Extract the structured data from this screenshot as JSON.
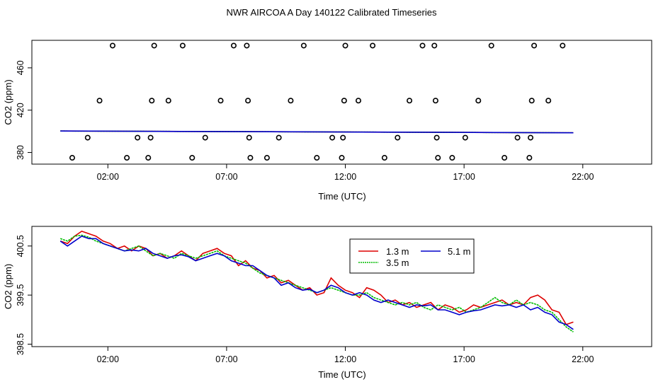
{
  "title": "NWR AIRCOA A  Day 140122  Calibrated Timeseries",
  "chart_data": [
    {
      "type": "scatter",
      "xlabel": "Time (UTC)",
      "ylabel": "CO2 (ppm)",
      "xlim": [
        -1.2,
        24.9
      ],
      "ylim": [
        369,
        486
      ],
      "x_ticks": [
        2,
        7,
        12,
        17,
        22
      ],
      "x_tick_labels": [
        "02:00",
        "07:00",
        "12:00",
        "17:00",
        "22:00"
      ],
      "y_ticks": [
        380,
        420,
        460
      ],
      "y_tick_labels": [
        "380",
        "420",
        "460"
      ],
      "grid": false,
      "series": [
        {
          "marker": "open-circle",
          "color": "#000000",
          "points": [
            [
              0.5,
              375
            ],
            [
              1.15,
              394
            ],
            [
              1.65,
              429
            ],
            [
              2.2,
              481
            ],
            [
              2.8,
              375
            ],
            [
              3.25,
              394
            ],
            [
              3.7,
              375
            ],
            [
              3.8,
              394
            ],
            [
              3.85,
              429
            ],
            [
              3.95,
              481
            ],
            [
              4.55,
              429
            ],
            [
              5.15,
              481
            ],
            [
              5.55,
              375
            ],
            [
              6.1,
              394
            ],
            [
              6.75,
              429
            ],
            [
              7.3,
              481
            ],
            [
              7.85,
              481
            ],
            [
              7.9,
              429
            ],
            [
              7.95,
              394
            ],
            [
              8.0,
              375
            ],
            [
              8.7,
              375
            ],
            [
              9.2,
              394
            ],
            [
              9.7,
              429
            ],
            [
              10.25,
              481
            ],
            [
              10.8,
              375
            ],
            [
              11.45,
              394
            ],
            [
              11.85,
              375
            ],
            [
              11.9,
              394
            ],
            [
              11.95,
              429
            ],
            [
              12.0,
              481
            ],
            [
              12.55,
              429
            ],
            [
              13.15,
              481
            ],
            [
              13.65,
              375
            ],
            [
              14.2,
              394
            ],
            [
              14.7,
              429
            ],
            [
              15.25,
              481
            ],
            [
              15.75,
              481
            ],
            [
              15.8,
              429
            ],
            [
              15.85,
              394
            ],
            [
              15.9,
              375
            ],
            [
              16.5,
              375
            ],
            [
              17.05,
              394
            ],
            [
              17.6,
              429
            ],
            [
              18.15,
              481
            ],
            [
              18.7,
              375
            ],
            [
              19.25,
              394
            ],
            [
              19.75,
              375
            ],
            [
              19.8,
              394
            ],
            [
              19.85,
              429
            ],
            [
              19.95,
              481
            ],
            [
              20.55,
              429
            ],
            [
              21.15,
              481
            ]
          ]
        },
        {
          "name": "1.3 m",
          "color": "#dd0000",
          "x": [
            0,
            21.6
          ],
          "y": [
            400.3,
            398.6
          ]
        },
        {
          "name": "3.5 m",
          "color": "#00bb00",
          "x": [
            0,
            21.6
          ],
          "y": [
            400.3,
            398.6
          ]
        },
        {
          "name": "5.1 m",
          "color": "#0000cc",
          "x": [
            0,
            21.6
          ],
          "y": [
            400.3,
            398.6
          ]
        }
      ]
    },
    {
      "type": "line",
      "xlabel": "Time (UTC)",
      "ylabel": "CO2 (ppm)",
      "xlim": [
        -1.2,
        24.9
      ],
      "ylim": [
        398.45,
        400.9
      ],
      "x_ticks": [
        2,
        7,
        12,
        17,
        22
      ],
      "x_tick_labels": [
        "02:00",
        "07:00",
        "12:00",
        "17:00",
        "22:00"
      ],
      "y_ticks": [
        398.5,
        399.5,
        400.5
      ],
      "y_tick_labels": [
        "398.5",
        "399.5",
        "400.5"
      ],
      "grid": false,
      "legend": {
        "position": "top-center",
        "columns": 2
      },
      "x": [
        0.0,
        0.3,
        0.6,
        0.9,
        1.2,
        1.5,
        1.8,
        2.1,
        2.4,
        2.7,
        3.0,
        3.3,
        3.6,
        3.9,
        4.2,
        4.5,
        4.8,
        5.1,
        5.4,
        5.7,
        6.0,
        6.3,
        6.6,
        6.9,
        7.2,
        7.5,
        7.8,
        8.1,
        8.4,
        8.7,
        9.0,
        9.3,
        9.6,
        9.9,
        10.2,
        10.5,
        10.8,
        11.1,
        11.4,
        11.7,
        12.0,
        12.3,
        12.6,
        12.9,
        13.2,
        13.5,
        13.8,
        14.1,
        14.4,
        14.7,
        15.0,
        15.3,
        15.6,
        15.9,
        16.2,
        16.5,
        16.8,
        17.1,
        17.4,
        17.7,
        18.0,
        18.3,
        18.6,
        18.9,
        19.2,
        19.5,
        19.8,
        20.1,
        20.4,
        20.7,
        21.0,
        21.3,
        21.6
      ],
      "series": [
        {
          "name": "1.3 m",
          "color": "#dd0000",
          "values": [
            400.6,
            400.55,
            400.7,
            400.8,
            400.75,
            400.7,
            400.6,
            400.55,
            400.45,
            400.5,
            400.4,
            400.5,
            400.45,
            400.3,
            400.35,
            400.25,
            400.3,
            400.4,
            400.3,
            400.2,
            400.35,
            400.4,
            400.45,
            400.35,
            400.3,
            400.1,
            400.2,
            400.05,
            400.0,
            399.85,
            399.9,
            399.75,
            399.8,
            399.7,
            399.6,
            399.65,
            399.5,
            399.55,
            399.85,
            399.7,
            399.6,
            399.55,
            399.45,
            399.65,
            399.6,
            399.5,
            399.35,
            399.4,
            399.3,
            399.35,
            399.25,
            399.3,
            399.35,
            399.2,
            399.3,
            399.25,
            399.15,
            399.2,
            399.3,
            399.25,
            399.3,
            399.35,
            399.4,
            399.3,
            399.35,
            399.3,
            399.45,
            399.5,
            399.4,
            399.2,
            399.15,
            398.9,
            398.95
          ]
        },
        {
          "name": "3.5 m",
          "color": "#00bb00",
          "values": [
            400.65,
            400.6,
            400.7,
            400.72,
            400.68,
            400.6,
            400.55,
            400.5,
            400.45,
            400.4,
            400.45,
            400.5,
            400.4,
            400.3,
            400.35,
            400.3,
            400.25,
            400.35,
            400.3,
            400.25,
            400.3,
            400.35,
            400.4,
            400.3,
            400.25,
            400.2,
            400.15,
            400.05,
            399.95,
            399.9,
            399.85,
            399.8,
            399.75,
            399.7,
            399.65,
            399.6,
            399.55,
            399.6,
            399.65,
            399.6,
            399.55,
            399.5,
            399.5,
            399.55,
            399.45,
            399.4,
            399.35,
            399.3,
            399.35,
            399.3,
            399.35,
            399.25,
            399.2,
            399.3,
            399.25,
            399.2,
            399.25,
            399.15,
            399.2,
            399.25,
            399.35,
            399.45,
            399.35,
            399.3,
            399.4,
            399.3,
            399.35,
            399.3,
            399.2,
            399.15,
            399.0,
            398.85,
            398.75
          ]
        },
        {
          "name": "5.1 m",
          "color": "#0000cc",
          "values": [
            400.6,
            400.5,
            400.6,
            400.7,
            400.65,
            400.65,
            400.55,
            400.5,
            400.45,
            400.4,
            400.42,
            400.4,
            400.45,
            400.35,
            400.3,
            400.25,
            400.3,
            400.32,
            400.28,
            400.2,
            400.25,
            400.3,
            400.35,
            400.3,
            400.2,
            400.15,
            400.1,
            400.1,
            400.0,
            399.9,
            399.85,
            399.7,
            399.75,
            399.65,
            399.6,
            399.62,
            399.55,
            399.6,
            399.7,
            399.65,
            399.55,
            399.5,
            399.55,
            399.5,
            399.4,
            399.35,
            399.4,
            399.35,
            399.3,
            399.25,
            399.3,
            399.28,
            399.3,
            399.2,
            399.2,
            399.15,
            399.1,
            399.15,
            399.18,
            399.2,
            399.25,
            399.3,
            399.28,
            399.3,
            399.25,
            399.3,
            399.2,
            399.25,
            399.15,
            399.1,
            398.95,
            398.9,
            398.8
          ]
        }
      ]
    }
  ]
}
